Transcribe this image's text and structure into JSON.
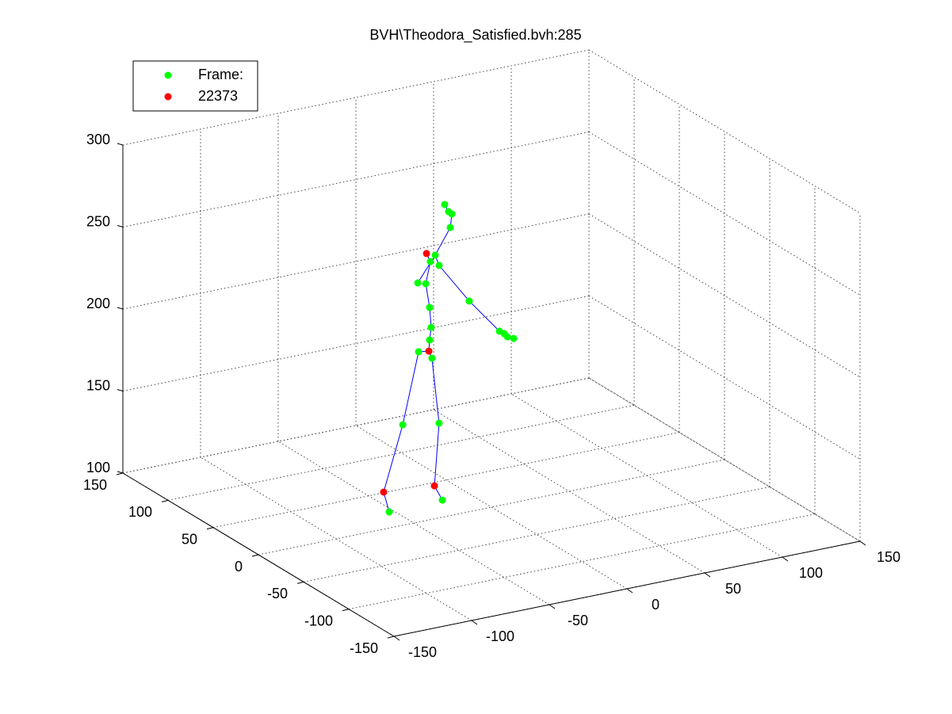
{
  "chart_data": {
    "type": "scatter3d",
    "title": "BVH\\Theodora_Satisfied.bvh:285",
    "xlim": [
      -150,
      150
    ],
    "ylim": [
      -150,
      150
    ],
    "zlim": [
      100,
      300
    ],
    "xticks": [
      -150,
      -100,
      -50,
      0,
      50,
      100,
      150
    ],
    "yticks": [
      -150,
      -100,
      -50,
      0,
      50,
      100,
      150
    ],
    "zticks": [
      100,
      150,
      200,
      250,
      300
    ],
    "grid": true,
    "legend": "upper left",
    "series": [
      {
        "name": "Frame:",
        "color": "#00ff00",
        "mode": "markers",
        "x": [
          -30.1,
          -27.6,
          -25.5,
          -26.5,
          -36.2,
          -39.3,
          -33.7,
          -47.4,
          -42.3,
          -39.8,
          -38.8,
          -39.8,
          -46.9,
          -38.3,
          -57.1,
          -33.7,
          -65.8,
          -31.6,
          -14.3,
          5.1,
          10.2,
          14.3,
          8.2
        ],
        "y": [
          0,
          0,
          0,
          0,
          0,
          0,
          0,
          0,
          0,
          0,
          0,
          0,
          0,
          0,
          0,
          0,
          0,
          0,
          0,
          0,
          0,
          0,
          0
        ],
        "z": [
          290.3,
          285.5,
          283.7,
          275.6,
          260.6,
          257.3,
          253.9,
          245.9,
          244.4,
          229.4,
          217.1,
          209.6,
          203.8,
          198.2,
          161.3,
          157.7,
          109.8,
          110.4,
          228.4,
          206.3,
          201.9,
          200.1,
          204.2
        ]
      },
      {
        "name": "22373",
        "color": "#ff0000",
        "mode": "markers",
        "x": [
          -41.8,
          -40.3,
          -69.4,
          -36.7
        ],
        "y": [
          0,
          0,
          0,
          0
        ],
        "z": [
          262.7,
          202.9,
          122.6,
          120.1
        ]
      },
      {
        "color": "#0000ff",
        "mode": "lines",
        "x": [
          -30.1,
          -27.6,
          -25.5,
          -26.5,
          -36.2,
          -33.7,
          -14.3,
          5.1,
          10.2,
          null,
          -47.4,
          -36.2,
          null,
          -41.8,
          -39.3,
          -42.3,
          -39.8,
          -38.8,
          -39.8,
          -40.3,
          -38.3,
          -33.7,
          -36.7,
          -31.6,
          null,
          -40.3,
          -46.9,
          -57.1,
          -69.4,
          -65.8
        ],
        "y": [
          0,
          0,
          0,
          0,
          0,
          0,
          0,
          0,
          0,
          null,
          0,
          0,
          null,
          0,
          0,
          0,
          0,
          0,
          0,
          0,
          0,
          0,
          0,
          0,
          null,
          0,
          0,
          0,
          0,
          0
        ],
        "z": [
          290.3,
          285.5,
          283.7,
          275.6,
          260.6,
          253.9,
          228.4,
          206.3,
          201.9,
          null,
          245.9,
          260.6,
          null,
          262.7,
          257.3,
          244.4,
          229.4,
          217.1,
          209.6,
          202.9,
          198.2,
          157.7,
          120.1,
          110.4,
          null,
          202.9,
          203.8,
          161.3,
          122.6,
          109.8
        ]
      }
    ]
  }
}
